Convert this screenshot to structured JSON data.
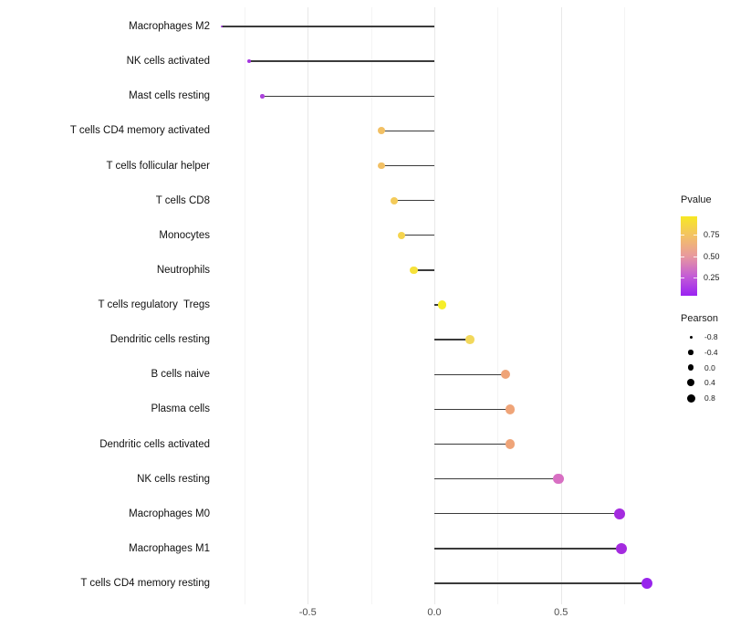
{
  "chart_data": {
    "type": "scatter",
    "variant": "lollipop",
    "title": "",
    "xlabel": "",
    "ylabel": "",
    "xlim": [
      -0.92,
      0.93
    ],
    "grid": "vertical only, light gray, minor at 0.25 steps",
    "legend_position": "right",
    "x_ticks": [
      {
        "label": "-0.5",
        "value": -0.5
      },
      {
        "label": "0.0",
        "value": 0.0
      },
      {
        "label": "0.5",
        "value": 0.5
      }
    ],
    "x_minor_gridlines": [
      -0.75,
      -0.25,
      0.25,
      0.75
    ],
    "points": [
      {
        "label": "Macrophages M2",
        "pearson": -0.84,
        "pvalue": 0.13,
        "color": "#A133E0"
      },
      {
        "label": "NK cells activated",
        "pearson": -0.73,
        "pvalue": 0.14,
        "color": "#A434DF"
      },
      {
        "label": "Mast cells resting",
        "pearson": -0.68,
        "pvalue": 0.19,
        "color": "#AC43DC"
      },
      {
        "label": "T cells CD4 memory activated",
        "pearson": -0.21,
        "pvalue": 0.67,
        "color": "#F2C064"
      },
      {
        "label": "T cells follicular helper",
        "pearson": -0.21,
        "pvalue": 0.67,
        "color": "#F2C064"
      },
      {
        "label": "T cells CD8",
        "pearson": -0.16,
        "pvalue": 0.71,
        "color": "#F4CB5A"
      },
      {
        "label": "Monocytes",
        "pearson": -0.13,
        "pvalue": 0.75,
        "color": "#F5D44E"
      },
      {
        "label": "Neutrophils",
        "pearson": -0.08,
        "pvalue": 0.83,
        "color": "#F6E13A"
      },
      {
        "label": "T cells regulatory  Tregs",
        "pearson": 0.03,
        "pvalue": 0.92,
        "color": "#F6EE29"
      },
      {
        "label": "Dendritic cells resting",
        "pearson": 0.14,
        "pvalue": 0.79,
        "color": "#F2D85C"
      },
      {
        "label": "B cells naive",
        "pearson": 0.28,
        "pvalue": 0.55,
        "color": "#EFA478"
      },
      {
        "label": "Plasma cells",
        "pearson": 0.3,
        "pvalue": 0.55,
        "color": "#EFA478"
      },
      {
        "label": "Dendritic cells activated",
        "pearson": 0.3,
        "pvalue": 0.55,
        "color": "#EFA478"
      },
      {
        "label": "NK cells resting",
        "pearson": 0.49,
        "pvalue": 0.33,
        "color": "#D86FC3"
      },
      {
        "label": "Macrophages M0",
        "pearson": 0.73,
        "pvalue": 0.14,
        "color": "#A42BDF"
      },
      {
        "label": "Macrophages M1",
        "pearson": 0.74,
        "pvalue": 0.14,
        "color": "#A42BDF"
      },
      {
        "label": "T cells CD4 memory resting",
        "pearson": 0.84,
        "pvalue": 0.07,
        "color": "#9824EC"
      }
    ]
  },
  "legend_pvalue": {
    "title": "Pvalue",
    "tick_labels": [
      "0.75",
      "0.50",
      "0.25"
    ],
    "gradient_top_to_bottom": [
      "#F7E823",
      "#F3C166",
      "#E8999E",
      "#C45DD5",
      "#9A23F2"
    ]
  },
  "legend_pearson": {
    "title": "Pearson",
    "item_labels": [
      "-0.8",
      "-0.4",
      "0.0",
      "0.4",
      "0.8"
    ],
    "item_values": [
      -0.8,
      -0.4,
      0.0,
      0.4,
      0.8
    ],
    "dot_color": "#000000"
  }
}
